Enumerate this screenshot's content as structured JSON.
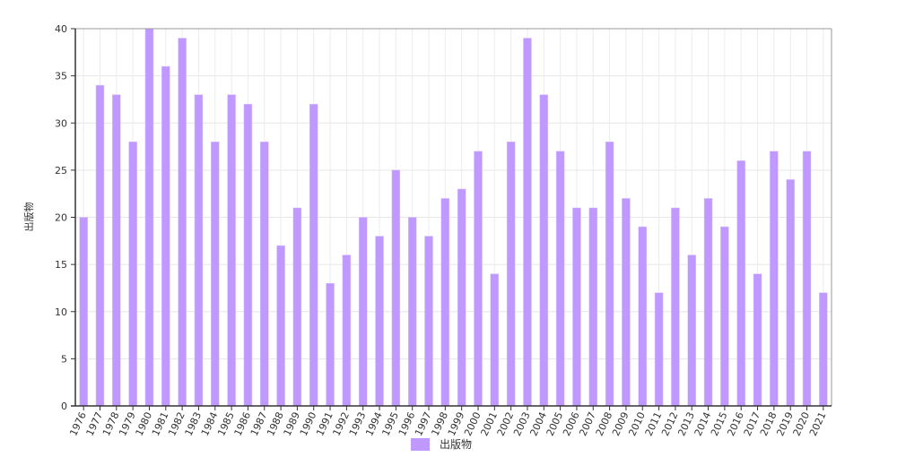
{
  "chart_data": {
    "type": "bar",
    "title": "",
    "xlabel": "",
    "ylabel": "出版物",
    "ylim": [
      0,
      40
    ],
    "yticks": [
      0,
      5,
      10,
      15,
      20,
      25,
      30,
      35,
      40
    ],
    "grid": true,
    "legend_position": "bottom",
    "bar_color": "#bf99ff",
    "categories": [
      "1976",
      "1977",
      "1978",
      "1979",
      "1980",
      "1981",
      "1982",
      "1983",
      "1984",
      "1985",
      "1986",
      "1987",
      "1988",
      "1989",
      "1990",
      "1991",
      "1992",
      "1993",
      "1994",
      "1995",
      "1996",
      "1997",
      "1998",
      "1999",
      "2000",
      "2001",
      "2002",
      "2003",
      "2004",
      "2005",
      "2006",
      "2007",
      "2008",
      "2009",
      "2010",
      "2011",
      "2012",
      "2013",
      "2014",
      "2015",
      "2016",
      "2017",
      "2018",
      "2019",
      "2020",
      "2021"
    ],
    "series": [
      {
        "name": "出版物",
        "values": [
          20,
          34,
          33,
          28,
          40,
          36,
          39,
          33,
          28,
          33,
          32,
          28,
          17,
          21,
          32,
          13,
          16,
          20,
          18,
          25,
          20,
          18,
          22,
          23,
          27,
          14,
          28,
          39,
          33,
          27,
          21,
          21,
          28,
          22,
          19,
          12,
          21,
          16,
          22,
          19,
          26,
          14,
          27,
          24,
          27,
          12
        ]
      }
    ]
  }
}
